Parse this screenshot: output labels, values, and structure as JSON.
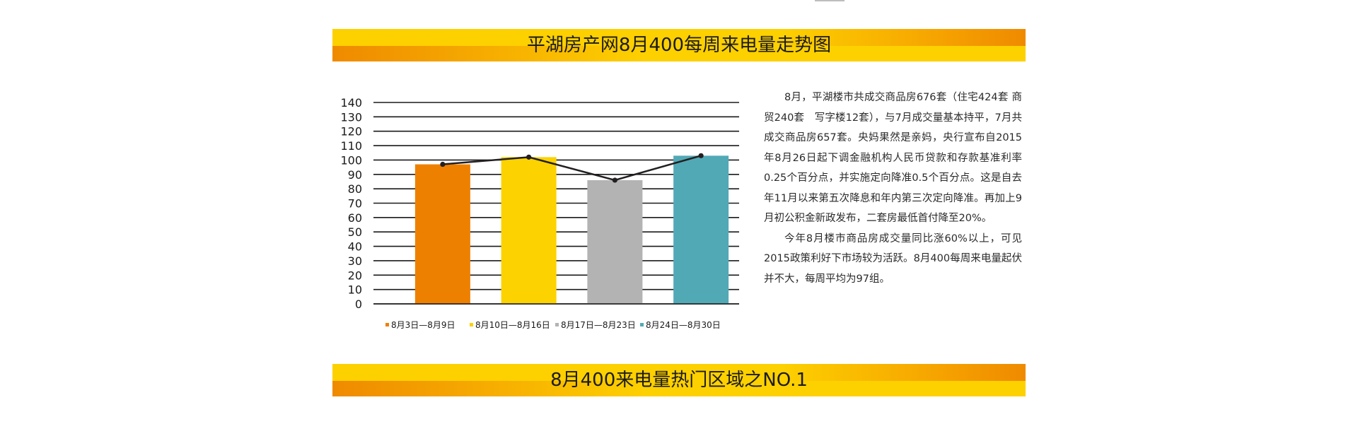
{
  "page": {
    "banner_title_1": "平湖房产网8月400每周来电量走势图",
    "banner_title_2": "8月400来电量热门区域之NO.1"
  },
  "article": {
    "paragraphs": [
      "8月，平湖楼市共成交商品房676套（住宅424套 商贸240套　写字楼12套），与7月成交量基本持平，7月共成交商品房657套。央妈果然是亲妈，央行宣布自2015年8月26日起下调金融机构人民币贷款和存款基准利率0.25个百分点，并实施定向降准0.5个百分点。这是自去年11月以来第五次降息和年内第三次定向降准。再加上9月初公积金新政发布，二套房最低首付降至20%。",
      "今年8月楼市商品房成交量同比涨60%以上，可见2015政策利好下市场较为活跃。8月400每周来电量起伏并不大，每周平均为97组。"
    ]
  },
  "chart_data": {
    "type": "bar",
    "title": "",
    "xlabel": "",
    "ylabel": "",
    "categories": [
      "8月3日—8月9日",
      "8月10日—8月16日",
      "8月17日—8月23日",
      "8月24日—8月30日"
    ],
    "values": [
      97,
      102,
      86,
      103
    ],
    "line_overlay": [
      97,
      102,
      86,
      103
    ],
    "ylim": [
      0,
      140
    ],
    "y_ticks": [
      0,
      10,
      20,
      30,
      40,
      50,
      60,
      70,
      80,
      90,
      100,
      110,
      120,
      130,
      140
    ],
    "grid": true,
    "legend_position": "bottom",
    "colors": [
      "#ee8000",
      "#fcd200",
      "#b3b3b3",
      "#52a9b6"
    ],
    "line_color": "#231f20"
  }
}
